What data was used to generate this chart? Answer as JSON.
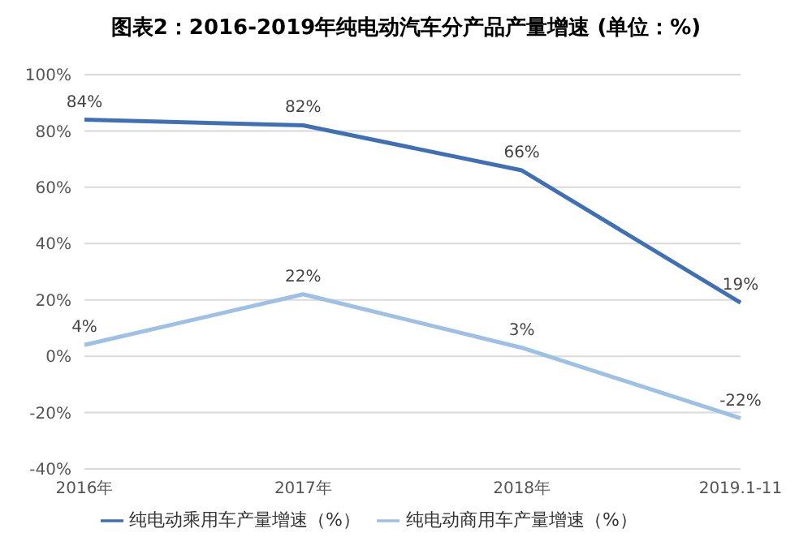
{
  "chart_data": {
    "type": "line",
    "title": "图表2：2016-2019年纯电动汽车分产品产量增速 (单位：%)",
    "categories": [
      "2016年",
      "2017年",
      "2018年",
      "2019.1-11"
    ],
    "series": [
      {
        "name": "纯电动乘用车产量增速（%）",
        "color": "#3f6fb5",
        "values": [
          84,
          82,
          66,
          19
        ],
        "value_labels": [
          "84%",
          "82%",
          "66%",
          "19%"
        ]
      },
      {
        "name": "纯电动商用车产量增速（%）",
        "color": "#9dc0e4",
        "values": [
          4,
          22,
          3,
          -22
        ],
        "value_labels": [
          "4%",
          "22%",
          "3%",
          "-22%"
        ]
      }
    ],
    "ylim": [
      -40,
      100
    ],
    "yticks": [
      {
        "value": -40,
        "label": "-40%"
      },
      {
        "value": -20,
        "label": "-20%"
      },
      {
        "value": 0,
        "label": "0%"
      },
      {
        "value": 20,
        "label": "20%"
      },
      {
        "value": 40,
        "label": "40%"
      },
      {
        "value": 60,
        "label": "60%"
      },
      {
        "value": 80,
        "label": "80%"
      },
      {
        "value": 100,
        "label": "100%"
      }
    ],
    "grid": "y",
    "legend": "bottom",
    "marker": "none",
    "line_style": "solid"
  }
}
